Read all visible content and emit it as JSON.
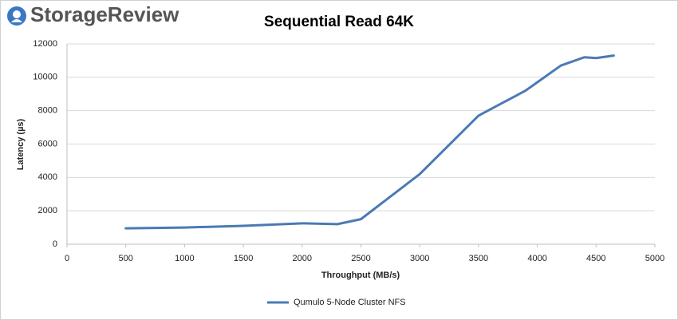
{
  "logo": "StorageReview",
  "chart_data": {
    "type": "line",
    "title": "Sequential Read 64K",
    "x_label": "Throughput (MB/s)",
    "y_label": "Latency (µs)",
    "x": [
      500,
      1000,
      1500,
      2000,
      2300,
      2500,
      3000,
      3500,
      3900,
      4000,
      4200,
      4400,
      4500,
      4650
    ],
    "series": [
      {
        "name": "Qumulo 5-Node Cluster NFS",
        "color": "#4a7ab5",
        "values": [
          950,
          1000,
          1100,
          1250,
          1200,
          1500,
          4200,
          7700,
          9200,
          9700,
          10700,
          11200,
          11150,
          11300
        ]
      }
    ],
    "xlim": [
      0,
      5000
    ],
    "xticks": [
      0,
      500,
      1000,
      1500,
      2000,
      2500,
      3000,
      3500,
      4000,
      4500,
      5000
    ],
    "ylim": [
      0,
      12000
    ],
    "yticks": [
      0,
      2000,
      4000,
      6000,
      8000,
      10000,
      12000
    ],
    "grid": true,
    "legend": "bottom"
  }
}
